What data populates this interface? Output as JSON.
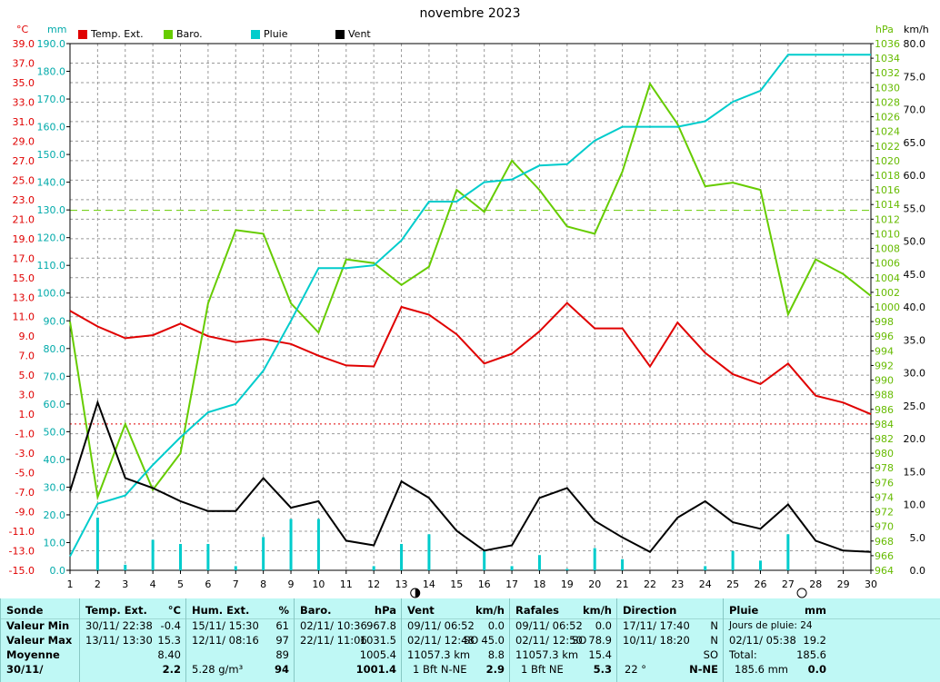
{
  "title": "novembre 2023",
  "units": {
    "temp": "°C",
    "rain": "mm",
    "baro": "hPa",
    "wind": "km/h"
  },
  "legend": [
    {
      "label": "Temp. Ext.",
      "color": "#e00000"
    },
    {
      "label": "Baro.",
      "color": "#66cc00"
    },
    {
      "label": "Pluie",
      "color": "#00cccc"
    },
    {
      "label": "Vent",
      "color": "#000000"
    }
  ],
  "chart_data": {
    "type": "line",
    "title": "novembre 2023",
    "x": [
      1,
      2,
      3,
      4,
      5,
      6,
      7,
      8,
      9,
      10,
      11,
      12,
      13,
      14,
      15,
      16,
      17,
      18,
      19,
      20,
      21,
      22,
      23,
      24,
      25,
      26,
      27,
      28,
      29,
      30
    ],
    "xlim": [
      1,
      30
    ],
    "grid": true,
    "axes": {
      "temp": {
        "ticks": [
          "39.0",
          "37.0",
          "35.0",
          "33.0",
          "31.0",
          "29.0",
          "27.0",
          "25.0",
          "23.0",
          "21.0",
          "19.0",
          "17.0",
          "15.0",
          "13.0",
          "11.0",
          "9.0",
          "7.0",
          "5.0",
          "3.0",
          "1.0",
          "-1.0",
          "-3.0",
          "-5.0",
          "-7.0",
          "-9.0",
          "-11.0",
          "-13.0",
          "-15.0"
        ],
        "range": [
          -15,
          39
        ]
      },
      "rain": {
        "ticks": [
          "190.0",
          "180.0",
          "170.0",
          "160.0",
          "150.0",
          "140.0",
          "130.0",
          "120.0",
          "110.0",
          "100.0",
          "90.0",
          "80.0",
          "70.0",
          "60.0",
          "50.0",
          "40.0",
          "30.0",
          "20.0",
          "10.0",
          "0.0"
        ],
        "range": [
          0,
          190
        ]
      },
      "baro": {
        "ticks": [
          "1036",
          "1034",
          "1032",
          "1030",
          "1028",
          "1026",
          "1024",
          "1022",
          "1020",
          "1018",
          "1016",
          "1014",
          "1012",
          "1010",
          "1008",
          "1006",
          "1004",
          "1002",
          "1000",
          "998",
          "996",
          "994",
          "992",
          "990",
          "988",
          "986",
          "984",
          "982",
          "980",
          "978",
          "976",
          "974",
          "972",
          "970",
          "968",
          "966",
          "964"
        ],
        "range": [
          964,
          1036
        ]
      },
      "wind": {
        "ticks": [
          "80.0",
          "75.0",
          "70.0",
          "65.0",
          "60.0",
          "55.0",
          "50.0",
          "45.0",
          "40.0",
          "35.0",
          "30.0",
          "25.0",
          "20.0",
          "15.0",
          "10.0",
          "5.0",
          "0.0"
        ],
        "range": [
          0,
          80
        ]
      }
    },
    "series": [
      {
        "name": "Temp. Ext.",
        "axis": "temp",
        "color": "#e00000",
        "values": [
          11.6,
          10.0,
          8.8,
          9.1,
          10.3,
          9.0,
          8.4,
          8.7,
          8.2,
          7.0,
          6.0,
          5.9,
          12.0,
          11.2,
          9.2,
          6.2,
          7.2,
          9.5,
          12.4,
          9.8,
          9.8,
          5.9,
          10.4,
          7.3,
          5.1,
          4.1,
          6.2,
          2.9,
          2.2,
          1.0
        ]
      },
      {
        "name": "Baro.",
        "axis": "baro",
        "color": "#66cc00",
        "values": [
          998.0,
          974.0,
          984.0,
          975.0,
          980.0,
          1000.5,
          1010.5,
          1010.0,
          1000.5,
          996.5,
          1006.5,
          1006.0,
          1003.0,
          1005.5,
          1016.0,
          1013.0,
          1020.0,
          1016.0,
          1011.0,
          1010.0,
          1018.5,
          1030.5,
          1025.0,
          1016.5,
          1017.0,
          1016.0,
          999.0,
          1006.5,
          1004.5,
          1001.5
        ]
      },
      {
        "name": "Pluie",
        "axis": "rain",
        "color": "#00cccc",
        "values": [
          5.0,
          24.0,
          27.0,
          38.0,
          48.0,
          57.0,
          60.0,
          72.0,
          90.0,
          109.0,
          109.0,
          110.0,
          119.0,
          133.0,
          133.0,
          140.0,
          141.0,
          146.0,
          146.5,
          155.0,
          160.0,
          160.0,
          160.0,
          162.0,
          169.0,
          173.0,
          186.0,
          186.0,
          186.0,
          186.0
        ],
        "bars": [
          null,
          19.0,
          2.0,
          11.0,
          9.5,
          9.5,
          1.5,
          12.0,
          18.5,
          18.5,
          null,
          1.5,
          9.5,
          13.0,
          null,
          7.0,
          1.5,
          5.5,
          0.5,
          8.0,
          4.0,
          null,
          null,
          1.5,
          7.0,
          3.5,
          13.0,
          null,
          null,
          null
        ]
      },
      {
        "name": "Vent",
        "axis": "wind",
        "color": "#000000",
        "values": [
          12.0,
          25.5,
          14.0,
          12.5,
          10.5,
          9.0,
          9.0,
          14.0,
          9.5,
          10.5,
          4.5,
          3.8,
          13.5,
          11.0,
          6.0,
          3.0,
          3.8,
          11.0,
          12.5,
          7.5,
          5.0,
          2.8,
          8.0,
          10.5,
          7.3,
          6.3,
          10.0,
          4.5,
          3.0,
          2.8
        ]
      }
    ],
    "reference_lines": [
      {
        "axis": "baro",
        "value": 1013.2
      },
      {
        "axis": "temp",
        "value": 0.0
      }
    ]
  },
  "summary": {
    "sonde": {
      "header": "Sonde",
      "rows": [
        "Valeur Min",
        "Valeur Max",
        "Moyenne",
        "30/11/"
      ]
    },
    "temp": {
      "header": "Temp. Ext.",
      "unit": "°C",
      "min_date": "30/11/ 22:38",
      "min_val": "-0.4",
      "max_date": "13/11/ 13:30",
      "max_val": "15.3",
      "avg": "8.40",
      "current": "2.2"
    },
    "hum": {
      "header": "Hum. Ext.",
      "unit": "%",
      "min_date": "15/11/ 15:30",
      "min_val": "61",
      "max_date": "12/11/ 08:16",
      "max_val": "97",
      "avg": "89",
      "extra": "5.28 g/m³",
      "current": "94"
    },
    "baro": {
      "header": "Baro.",
      "unit": "hPa",
      "min_date": "02/11/ 10:36",
      "min_val": "967.8",
      "max_date": "22/11/ 11:06",
      "max_val": "1031.5",
      "avg": "1005.4",
      "current": "1001.4"
    },
    "wind": {
      "header": "Vent",
      "unit": "km/h",
      "min_date": "09/11/ 06:52",
      "min_val": "0.0",
      "max_date": "02/11/ 12:48",
      "max_dir": "SO",
      "max_val": "45.0",
      "dist": "11057.3 km",
      "avg": "8.8",
      "bft": "1 Bft N-NE",
      "current": "2.9"
    },
    "gust": {
      "header": "Rafales",
      "unit": "km/h",
      "min_date": "09/11/ 06:52",
      "min_val": "0.0",
      "max_date": "02/11/ 12:50",
      "max_dir": "SO",
      "max_val": "78.9",
      "dist": "11057.3 km",
      "avg": "15.4",
      "bft": "1 Bft NE",
      "current": "5.3"
    },
    "dir": {
      "header": "Direction",
      "r1": "17/11/ 17:40",
      "r1v": "N",
      "r2": "10/11/ 18:20",
      "r2v": "N",
      "r3v": "SO",
      "deg": "22 °",
      "current": "N-NE"
    },
    "rain": {
      "header": "Pluie",
      "unit": "mm",
      "days": "Jours de pluie: 24",
      "max_date": "02/11/ 05:38",
      "max_val": "19.2",
      "total_label": "Total:",
      "total": "185.6",
      "month": "185.6 mm",
      "current": "0.0"
    }
  }
}
